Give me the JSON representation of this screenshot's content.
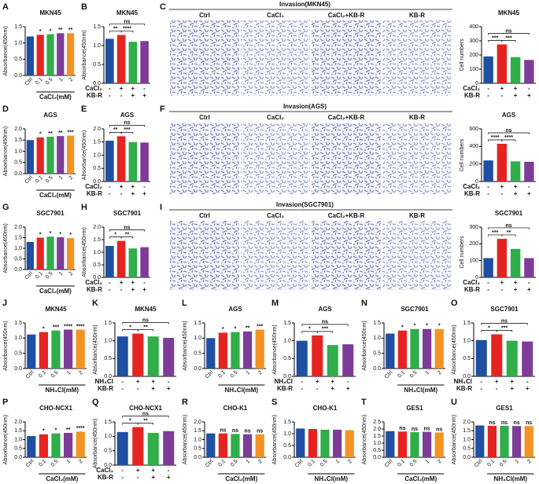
{
  "chart_data": [
    {
      "type": "bar",
      "panel": "A",
      "title": "MKN45",
      "ylabel": "Absorbance(450nm)",
      "xlabel": "CaCl₂(mM)",
      "categories": [
        "Ctrl",
        "0.1",
        "0.5",
        "1",
        "2"
      ],
      "values": [
        1.2,
        1.25,
        1.27,
        1.3,
        1.3
      ],
      "sig": [
        null,
        "*",
        "*",
        "**",
        "**"
      ],
      "colors": [
        "#1f4fa2",
        "#e52421",
        "#2fae4a",
        "#7d3c98",
        "#f39324"
      ],
      "ylim": [
        0,
        1.5
      ],
      "yticks": [
        {
          "value": 0,
          "label": "0.0"
        },
        0.5,
        {
          "value": 1,
          "label": "1.0"
        },
        1.5
      ]
    },
    {
      "type": "bar",
      "panel": "B",
      "title": "MKN45",
      "ylabel": "Absorbance(450nm)",
      "rows": [
        {
          "name": "CaCl₂",
          "signs": [
            "-",
            "+",
            "+",
            "-"
          ]
        },
        {
          "name": "KB-R",
          "signs": [
            "-",
            "-",
            "+",
            "+"
          ]
        }
      ],
      "values": [
        1.18,
        1.28,
        1.1,
        1.12
      ],
      "sig": [
        "**",
        "****",
        "ns"
      ],
      "colors": [
        "#1f4fa2",
        "#e52421",
        "#2fae4a",
        "#7d3c98"
      ],
      "ylim": [
        0,
        1.5
      ],
      "yticks": [
        {
          "value": 0,
          "label": "0.0"
        },
        0.5,
        {
          "value": 1,
          "label": "1.0"
        },
        1.5
      ]
    },
    {
      "type": "bar",
      "title": "MKN45",
      "ylabel": "Cell numbers",
      "rows": [
        {
          "name": "CaCl₂",
          "signs": [
            "-",
            "+",
            "+",
            "-"
          ]
        },
        {
          "name": "KB-R",
          "signs": [
            "-",
            "-",
            "+",
            "+"
          ]
        }
      ],
      "values": [
        190,
        275,
        185,
        165
      ],
      "sig": [
        "***",
        "***",
        "ns"
      ],
      "colors": [
        "#1f4fa2",
        "#e52421",
        "#2fae4a",
        "#7d3c98"
      ],
      "ylim": [
        0,
        400
      ],
      "yticks": [
        0,
        100,
        200,
        300,
        400
      ]
    },
    {
      "type": "bar",
      "panel": "D",
      "title": "AGS",
      "ylabel": "Absorbance(450nm)",
      "xlabel": "CaCl₂(mM)",
      "categories": [
        "Ctrl",
        "0.1",
        "0.5",
        "1",
        "2"
      ],
      "values": [
        1.5,
        1.62,
        1.65,
        1.68,
        1.7
      ],
      "sig": [
        null,
        "*",
        "**",
        "**",
        "***"
      ],
      "colors": [
        "#1f4fa2",
        "#e52421",
        "#2fae4a",
        "#7d3c98",
        "#f39324"
      ],
      "ylim": [
        0,
        2
      ],
      "yticks": [
        {
          "value": 0,
          "label": "0.0"
        },
        0.5,
        {
          "value": 1,
          "label": "1.0"
        },
        1.5,
        {
          "value": 2,
          "label": "2.0"
        }
      ]
    },
    {
      "type": "bar",
      "panel": "E",
      "title": "AGS",
      "ylabel": "Absorbance(450nm)",
      "rows": [
        {
          "name": "CaCl₂",
          "signs": [
            "-",
            "+",
            "+",
            "-"
          ]
        },
        {
          "name": "KB-R",
          "signs": [
            "-",
            "-",
            "+",
            "+"
          ]
        }
      ],
      "values": [
        1.55,
        1.72,
        1.5,
        1.48
      ],
      "sig": [
        "**",
        "***",
        "ns"
      ],
      "colors": [
        "#1f4fa2",
        "#e52421",
        "#2fae4a",
        "#7d3c98"
      ],
      "ylim": [
        0,
        2
      ],
      "yticks": [
        {
          "value": 0,
          "label": "0.0"
        },
        0.5,
        {
          "value": 1,
          "label": "1.0"
        },
        1.5,
        {
          "value": 2,
          "label": "2.0"
        }
      ]
    },
    {
      "type": "bar",
      "title": "AGS",
      "ylabel": "Cell numbers",
      "rows": [
        {
          "name": "CaCl₂",
          "signs": [
            "-",
            "+",
            "+",
            "-"
          ]
        },
        {
          "name": "KB-R",
          "signs": [
            "-",
            "-",
            "+",
            "+"
          ]
        }
      ],
      "values": [
        240,
        430,
        230,
        225
      ],
      "sig": [
        "****",
        "****",
        "ns"
      ],
      "colors": [
        "#1f4fa2",
        "#e52421",
        "#2fae4a",
        "#7d3c98"
      ],
      "ylim": [
        0,
        600
      ],
      "yticks": [
        0,
        200,
        400,
        600
      ]
    },
    {
      "type": "bar",
      "panel": "G",
      "title": "SGC7901",
      "ylabel": "Absorbance(450nm)",
      "xlabel": "CaCl₂(mM)",
      "categories": [
        "Ctrl",
        "0.1",
        "0.5",
        "1",
        "2"
      ],
      "values": [
        1.3,
        1.5,
        1.55,
        1.52,
        1.48
      ],
      "sig": [
        null,
        "*",
        "*",
        "*",
        "*"
      ],
      "colors": [
        "#1f4fa2",
        "#e52421",
        "#2fae4a",
        "#7d3c98",
        "#f39324"
      ],
      "ylim": [
        0,
        2
      ],
      "yticks": [
        {
          "value": 0,
          "label": "0.0"
        },
        0.5,
        {
          "value": 1,
          "label": "1.0"
        },
        1.5,
        {
          "value": 2,
          "label": "2.0"
        }
      ]
    },
    {
      "type": "bar",
      "panel": "H",
      "title": "SGC7901",
      "ylabel": "Absorbance(450nm)",
      "rows": [
        {
          "name": "CaCl₂",
          "signs": [
            "-",
            "+",
            "+",
            "-"
          ]
        },
        {
          "name": "KB-R",
          "signs": [
            "-",
            "-",
            "+",
            "+"
          ]
        }
      ],
      "values": [
        1.25,
        1.45,
        1.15,
        1.2
      ],
      "sig": [
        "*",
        "**",
        "ns"
      ],
      "colors": [
        "#1f4fa2",
        "#e52421",
        "#2fae4a",
        "#7d3c98"
      ],
      "ylim": [
        0,
        2
      ],
      "yticks": [
        {
          "value": 0,
          "label": "0.0"
        },
        0.5,
        {
          "value": 1,
          "label": "1.0"
        },
        1.5,
        {
          "value": 2,
          "label": "2.0"
        }
      ]
    },
    {
      "type": "bar",
      "title": "SGC7901",
      "ylabel": "Cell numbers",
      "rows": [
        {
          "name": "CaCl₂",
          "signs": [
            "-",
            "+",
            "+",
            "-"
          ]
        },
        {
          "name": "KB-R",
          "signs": [
            "-",
            "-",
            "+",
            "+"
          ]
        }
      ],
      "values": [
        115,
        230,
        170,
        115
      ],
      "sig": [
        "***",
        "**",
        "ns"
      ],
      "colors": [
        "#1f4fa2",
        "#e52421",
        "#2fae4a",
        "#7d3c98"
      ],
      "ylim": [
        0,
        300
      ],
      "yticks": [
        0,
        100,
        200,
        300
      ]
    },
    {
      "type": "bar",
      "panel": "J",
      "title": "MKN45",
      "ylabel": "Absorbance(450nm)",
      "xlabel": "NH₄Cl(mM)",
      "categories": [
        "Ctrl",
        "0.1",
        "0.5",
        "1",
        "2"
      ],
      "values": [
        1.12,
        1.2,
        1.25,
        1.28,
        1.28
      ],
      "sig": [
        null,
        "*",
        "***",
        "****",
        "****"
      ],
      "colors": [
        "#1f4fa2",
        "#e52421",
        "#2fae4a",
        "#7d3c98",
        "#f39324"
      ],
      "ylim": [
        0,
        1.5
      ],
      "yticks": [
        {
          "value": 0,
          "label": "0.0"
        },
        0.5,
        {
          "value": 1,
          "label": "1.0"
        },
        1.5
      ]
    },
    {
      "type": "bar",
      "panel": "K",
      "title": "MKN45",
      "ylabel": "Absorbance(450nm)",
      "rows": [
        {
          "name": "NH₄Cl",
          "signs": [
            "-",
            "+",
            "+",
            "-"
          ]
        },
        {
          "name": "KB-R",
          "signs": [
            "-",
            "-",
            "+",
            "+"
          ]
        }
      ],
      "values": [
        1.12,
        1.2,
        1.12,
        1.08
      ],
      "sig": [
        "*",
        "**",
        "ns"
      ],
      "colors": [
        "#1f4fa2",
        "#e52421",
        "#2fae4a",
        "#7d3c98"
      ],
      "ylim": [
        0,
        1.5
      ],
      "yticks": [
        {
          "value": 0,
          "label": "0.0"
        },
        0.5,
        {
          "value": 1,
          "label": "1.0"
        },
        1.5
      ]
    },
    {
      "type": "bar",
      "panel": "L",
      "title": "AGS",
      "ylabel": "Absorbance(450nm)",
      "xlabel": "NH₄Cl(mM)",
      "categories": [
        "Ctrl",
        "0.1",
        "0.5",
        "1",
        "2"
      ],
      "values": [
        1.0,
        1.18,
        1.2,
        1.22,
        1.28
      ],
      "sig": [
        null,
        "*",
        "*",
        "**",
        "***"
      ],
      "colors": [
        "#1f4fa2",
        "#e52421",
        "#2fae4a",
        "#7d3c98",
        "#f39324"
      ],
      "ylim": [
        0,
        1.5
      ],
      "yticks": [
        {
          "value": 0,
          "label": "0.0"
        },
        0.5,
        {
          "value": 1,
          "label": "1.0"
        },
        1.5
      ]
    },
    {
      "type": "bar",
      "panel": "M",
      "title": "AGS",
      "ylabel": "Absorbance(450nm)",
      "rows": [
        {
          "name": "NH₄Cl",
          "signs": [
            "-",
            "+",
            "+",
            "-"
          ]
        },
        {
          "name": "KB-R",
          "signs": [
            "-",
            "-",
            "+",
            "+"
          ]
        }
      ],
      "values": [
        1.0,
        1.15,
        0.88,
        0.9
      ],
      "sig": [
        "*",
        "***",
        "ns"
      ],
      "colors": [
        "#1f4fa2",
        "#e52421",
        "#2fae4a",
        "#7d3c98"
      ],
      "ylim": [
        0,
        1.5
      ],
      "yticks": [
        {
          "value": 0,
          "label": "0.0"
        },
        0.5,
        {
          "value": 1,
          "label": "1.0"
        },
        1.5
      ]
    },
    {
      "type": "bar",
      "panel": "N",
      "title": "SGC7901",
      "ylabel": "Absorbance(450nm)",
      "xlabel": "NH₄Cl(mM)",
      "categories": [
        "Ctrl",
        "0.1",
        "0.5",
        "1",
        "2"
      ],
      "values": [
        1.15,
        1.25,
        1.3,
        1.3,
        1.3
      ],
      "sig": [
        null,
        "*",
        "*",
        "*",
        "*"
      ],
      "colors": [
        "#1f4fa2",
        "#e52421",
        "#2fae4a",
        "#7d3c98",
        "#f39324"
      ],
      "ylim": [
        0,
        1.5
      ],
      "yticks": [
        {
          "value": 0,
          "label": "0.0"
        },
        0.5,
        {
          "value": 1,
          "label": "1.0"
        },
        1.5
      ]
    },
    {
      "type": "bar",
      "panel": "O",
      "title": "SGC7901",
      "ylabel": "Absorbance(450nm)",
      "rows": [
        {
          "name": "NH₄Cl",
          "signs": [
            "-",
            "+",
            "+",
            "-"
          ]
        },
        {
          "name": "KB-R",
          "signs": [
            "-",
            "-",
            "+",
            "+"
          ]
        }
      ],
      "values": [
        1.02,
        1.18,
        1.0,
        0.98
      ],
      "sig": [
        "*",
        "***",
        "ns"
      ],
      "colors": [
        "#1f4fa2",
        "#e52421",
        "#2fae4a",
        "#7d3c98"
      ],
      "ylim": [
        0,
        1.5
      ],
      "yticks": [
        {
          "value": 0,
          "label": "0.0"
        },
        0.5,
        {
          "value": 1,
          "label": "1.0"
        },
        1.5
      ]
    },
    {
      "type": "bar",
      "panel": "P",
      "title": "CHO-NCX1",
      "ylabel": "Absorbance(450nm)",
      "xlabel": "CaCl₂(mM)",
      "categories": [
        "Ctrl",
        "0.1",
        "0.5",
        "1",
        "2"
      ],
      "values": [
        1.2,
        1.3,
        1.35,
        1.38,
        1.45
      ],
      "sig": [
        null,
        "*",
        "*",
        "**",
        "****"
      ],
      "colors": [
        "#1f4fa2",
        "#e52421",
        "#2fae4a",
        "#7d3c98",
        "#f39324"
      ],
      "ylim": [
        0,
        2
      ],
      "yticks": [
        {
          "value": 0,
          "label": "0.0"
        },
        0.5,
        {
          "value": 1,
          "label": "1.0"
        },
        1.5,
        {
          "value": 2,
          "label": "2.0"
        }
      ]
    },
    {
      "type": "bar",
      "panel": "Q",
      "title": "CHO-NCX1",
      "ylabel": "Absorbance(450nm)",
      "rows": [
        {
          "name": "CaCl₂",
          "signs": [
            "-",
            "+",
            "+",
            "-"
          ]
        },
        {
          "name": "KB-R",
          "signs": [
            "-",
            "-",
            "+",
            "+"
          ]
        }
      ],
      "values": [
        1.15,
        1.32,
        1.12,
        1.18
      ],
      "sig": [
        "*",
        "**",
        "ns"
      ],
      "colors": [
        "#1f4fa2",
        "#e52421",
        "#2fae4a",
        "#7d3c98"
      ],
      "ylim": [
        0,
        1.5
      ],
      "yticks": [
        {
          "value": 0,
          "label": "0.0"
        },
        0.5,
        {
          "value": 1,
          "label": "1.0"
        },
        1.5
      ]
    },
    {
      "type": "bar",
      "panel": "R",
      "title": "CHO-K1",
      "ylabel": "Absorbance(450nm)",
      "xlabel": "CaCl₂(mM)",
      "categories": [
        "Ctrl",
        "0.1",
        "0.5",
        "1",
        "2"
      ],
      "values": [
        1.35,
        1.35,
        1.32,
        1.3,
        1.3
      ],
      "sig": [
        null,
        "ns",
        "ns",
        "ns",
        "ns"
      ],
      "colors": [
        "#1f4fa2",
        "#e52421",
        "#2fae4a",
        "#7d3c98",
        "#f39324"
      ],
      "ylim": [
        0,
        2
      ],
      "yticks": [
        {
          "value": 0,
          "label": "0.0"
        },
        0.5,
        {
          "value": 1,
          "label": "1.0"
        },
        1.5,
        {
          "value": 2,
          "label": "2.0"
        }
      ]
    },
    {
      "type": "bar",
      "panel": "S",
      "title": "CHO-K1",
      "ylabel": "Absorbance(450nm)",
      "xlabel": "NH₄Cl(mM)",
      "categories": [
        "Ctrl",
        "0.1",
        "0.5",
        "1",
        "2"
      ],
      "values": [
        1.22,
        1.2,
        1.17,
        1.17,
        1.15
      ],
      "colors": [
        "#1f4fa2",
        "#e52421",
        "#2fae4a",
        "#7d3c98",
        "#f39324"
      ],
      "ylim": [
        0,
        1.5
      ],
      "yticks": [
        {
          "value": 0,
          "label": "0.0"
        },
        0.5,
        {
          "value": 1,
          "label": "1.0"
        },
        1.5
      ]
    },
    {
      "type": "bar",
      "panel": "T",
      "title": "GES1",
      "ylabel": "Absorbance(450nm)",
      "xlabel": "CaCl₂(mM)",
      "categories": [
        "Ctrl",
        "0.1",
        "0.5",
        "1",
        "2"
      ],
      "values": [
        1.85,
        1.82,
        1.78,
        1.8,
        1.75
      ],
      "sig": [
        null,
        "ns",
        "ns",
        "ns",
        "ns"
      ],
      "colors": [
        "#1f4fa2",
        "#e52421",
        "#2fae4a",
        "#7d3c98",
        "#f39324"
      ],
      "ylim": [
        0,
        2.5
      ],
      "yticks": [
        {
          "value": 0,
          "label": "0.0"
        },
        0.5,
        {
          "value": 1,
          "label": "1.0"
        },
        1.5,
        {
          "value": 2,
          "label": "2.0"
        },
        2.5
      ]
    },
    {
      "type": "bar",
      "panel": "U",
      "title": "GES1",
      "ylabel": "Absorbance(450nm)",
      "xlabel": "NH₄Cl(mM)",
      "categories": [
        "Ctrl",
        "0.1",
        "0.5",
        "1",
        "2"
      ],
      "values": [
        1.8,
        1.78,
        1.78,
        1.77,
        1.77
      ],
      "sig": [
        null,
        "ns",
        "ns",
        "ns",
        "ns"
      ],
      "colors": [
        "#1f4fa2",
        "#e52421",
        "#2fae4a",
        "#7d3c98",
        "#f39324"
      ],
      "ylim": [
        0,
        2
      ],
      "yticks": [
        {
          "value": 0,
          "label": "0.0"
        },
        0.5,
        {
          "value": 1,
          "label": "1.0"
        },
        1.5,
        {
          "value": 2,
          "label": "2.0"
        }
      ]
    }
  ],
  "micrographs": [
    {
      "panel": "C",
      "title": "Invasion(MKN45)",
      "labels": [
        "Ctrl",
        "CaCl₂",
        "CaCl₂+KB-R",
        "KB-R"
      ]
    },
    {
      "panel": "F",
      "title": "Invasion(AGS)",
      "labels": [
        "Ctrl",
        "CaCl₂",
        "CaCl₂+KB-R",
        "KB-R"
      ]
    },
    {
      "panel": "I",
      "title": "Invasion(SGC7901)",
      "labels": [
        "Ctrl",
        "CaCl₂",
        "CaCl₂+KB-R",
        "KB-R"
      ]
    }
  ]
}
